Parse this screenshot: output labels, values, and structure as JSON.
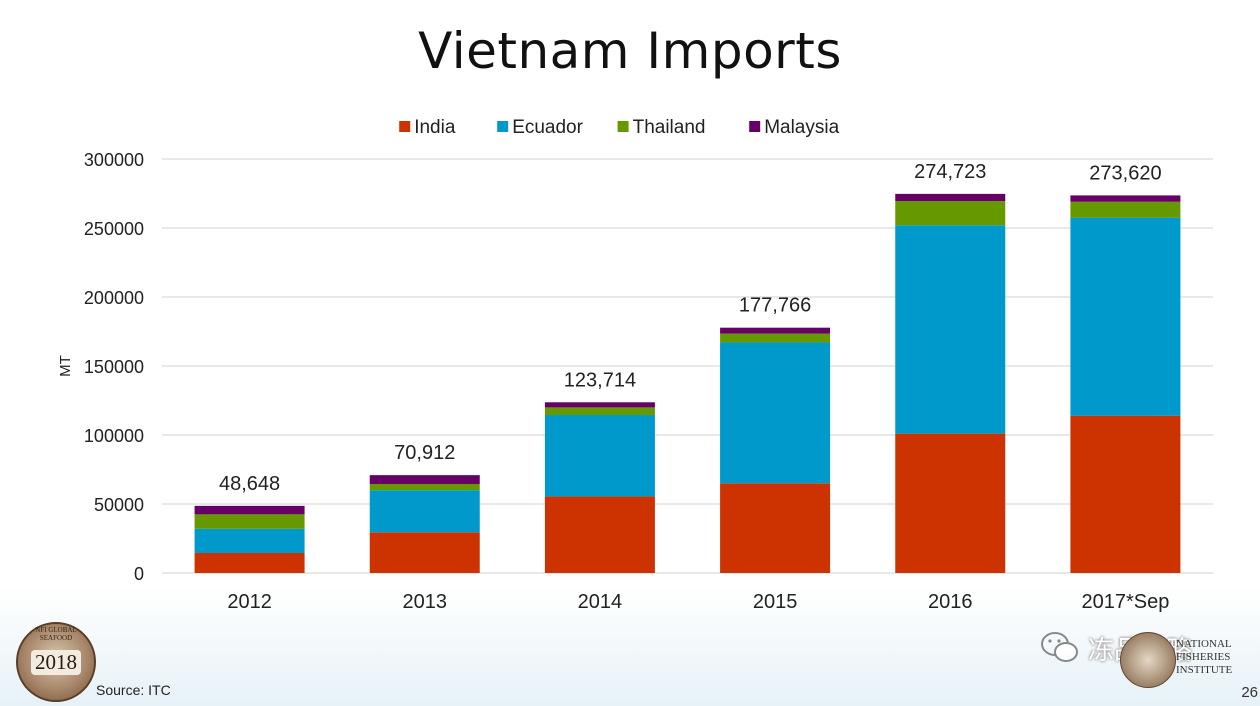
{
  "title": "Vietnam Imports",
  "source": "Source: ITC",
  "page_number": "26",
  "seal": {
    "year": "2018",
    "ring_text": "NFI GLOBAL SEAFOOD MARKET CONFERENCE"
  },
  "institute": {
    "lines": [
      "NATIONAL",
      "FISHERIES",
      "INSTITUTE"
    ]
  },
  "watermark": {
    "text": "冻品攻略",
    "icon": "wechat-icon"
  },
  "colors": {
    "India": "#cc3300",
    "Ecuador": "#0099cc",
    "Thailand": "#669900",
    "Malaysia": "#660066",
    "grid": "#d0d0d0"
  },
  "chart_data": {
    "type": "bar",
    "stacked": true,
    "title": "Vietnam Imports",
    "xlabel": "",
    "ylabel": "MT",
    "ylim": [
      0,
      300000
    ],
    "yticks": [
      0,
      50000,
      100000,
      150000,
      200000,
      250000,
      300000
    ],
    "ytick_labels": [
      "0",
      "50000",
      "100000",
      "150000",
      "200000",
      "250000",
      "300000"
    ],
    "categories": [
      "2012",
      "2013",
      "2014",
      "2015",
      "2016",
      "2017*Sep"
    ],
    "series": [
      {
        "name": "India",
        "values": [
          14500,
          29500,
          55500,
          65000,
          101000,
          114000
        ]
      },
      {
        "name": "Ecuador",
        "values": [
          17500,
          30500,
          59000,
          102000,
          151000,
          143500
        ]
      },
      {
        "name": "Thailand",
        "values": [
          10500,
          4500,
          5500,
          6500,
          17500,
          11500
        ]
      },
      {
        "name": "Malaysia",
        "values": [
          6148,
          6412,
          3714,
          4266,
          5223,
          4620
        ]
      }
    ],
    "totals_labels": [
      "48,648",
      "70,912",
      "123,714",
      "177,766",
      "274,723",
      "273,620"
    ],
    "legend": {
      "position": "top-center"
    },
    "grid": true
  }
}
